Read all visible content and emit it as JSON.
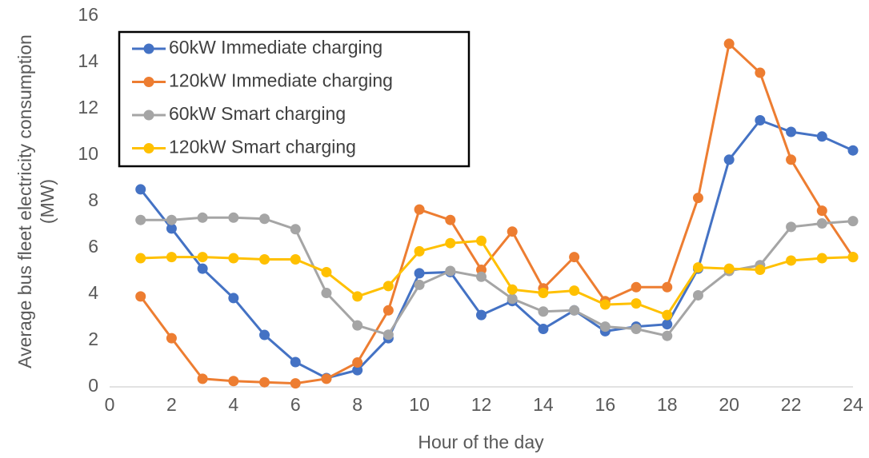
{
  "chart_data": {
    "type": "line",
    "x_label": "Hour of the day",
    "y_label": "Average bus fleet electricity consumption (MW)",
    "x": [
      1,
      2,
      3,
      4,
      5,
      6,
      7,
      8,
      9,
      10,
      11,
      12,
      13,
      14,
      15,
      16,
      17,
      18,
      19,
      20,
      21,
      22,
      23,
      24
    ],
    "xlim": [
      0,
      24
    ],
    "xticks": [
      0,
      2,
      4,
      6,
      8,
      10,
      12,
      14,
      16,
      18,
      20,
      22,
      24
    ],
    "ylim": [
      0,
      16
    ],
    "yticks": [
      0,
      2,
      4,
      6,
      8,
      10,
      12,
      14,
      16
    ],
    "grid": false,
    "legend": "top-left",
    "series": [
      {
        "name": "60kW Immediate charging",
        "color": "#4472c4",
        "values": [
          8.52,
          6.83,
          5.1,
          3.83,
          2.24,
          1.07,
          0.38,
          0.72,
          2.1,
          4.9,
          4.95,
          3.1,
          3.7,
          2.5,
          3.3,
          2.4,
          2.6,
          2.7,
          5.1,
          9.8,
          11.5,
          11.0,
          10.8,
          10.2
        ]
      },
      {
        "name": "120kW Immediate charging",
        "color": "#ed7d31",
        "values": [
          3.9,
          2.1,
          0.35,
          0.25,
          0.2,
          0.15,
          0.35,
          1.05,
          3.3,
          7.65,
          7.2,
          5.05,
          6.7,
          4.25,
          5.6,
          3.7,
          4.3,
          4.3,
          8.15,
          14.8,
          13.55,
          9.8,
          7.6,
          5.6
        ]
      },
      {
        "name": "60kW Smart charging",
        "color": "#a5a5a5",
        "values": [
          7.2,
          7.2,
          7.3,
          7.3,
          7.25,
          6.8,
          4.05,
          2.65,
          2.25,
          4.4,
          5.0,
          4.75,
          3.8,
          3.25,
          3.3,
          2.6,
          2.5,
          2.2,
          3.95,
          5.0,
          5.25,
          6.9,
          7.05,
          7.15
        ]
      },
      {
        "name": "120kW Smart charging",
        "color": "#ffc000",
        "values": [
          5.55,
          5.6,
          5.6,
          5.55,
          5.5,
          5.5,
          4.95,
          3.9,
          4.35,
          5.85,
          6.2,
          6.3,
          4.2,
          4.05,
          4.15,
          3.55,
          3.6,
          3.1,
          5.15,
          5.1,
          5.05,
          5.45,
          5.55,
          5.6
        ]
      }
    ]
  }
}
